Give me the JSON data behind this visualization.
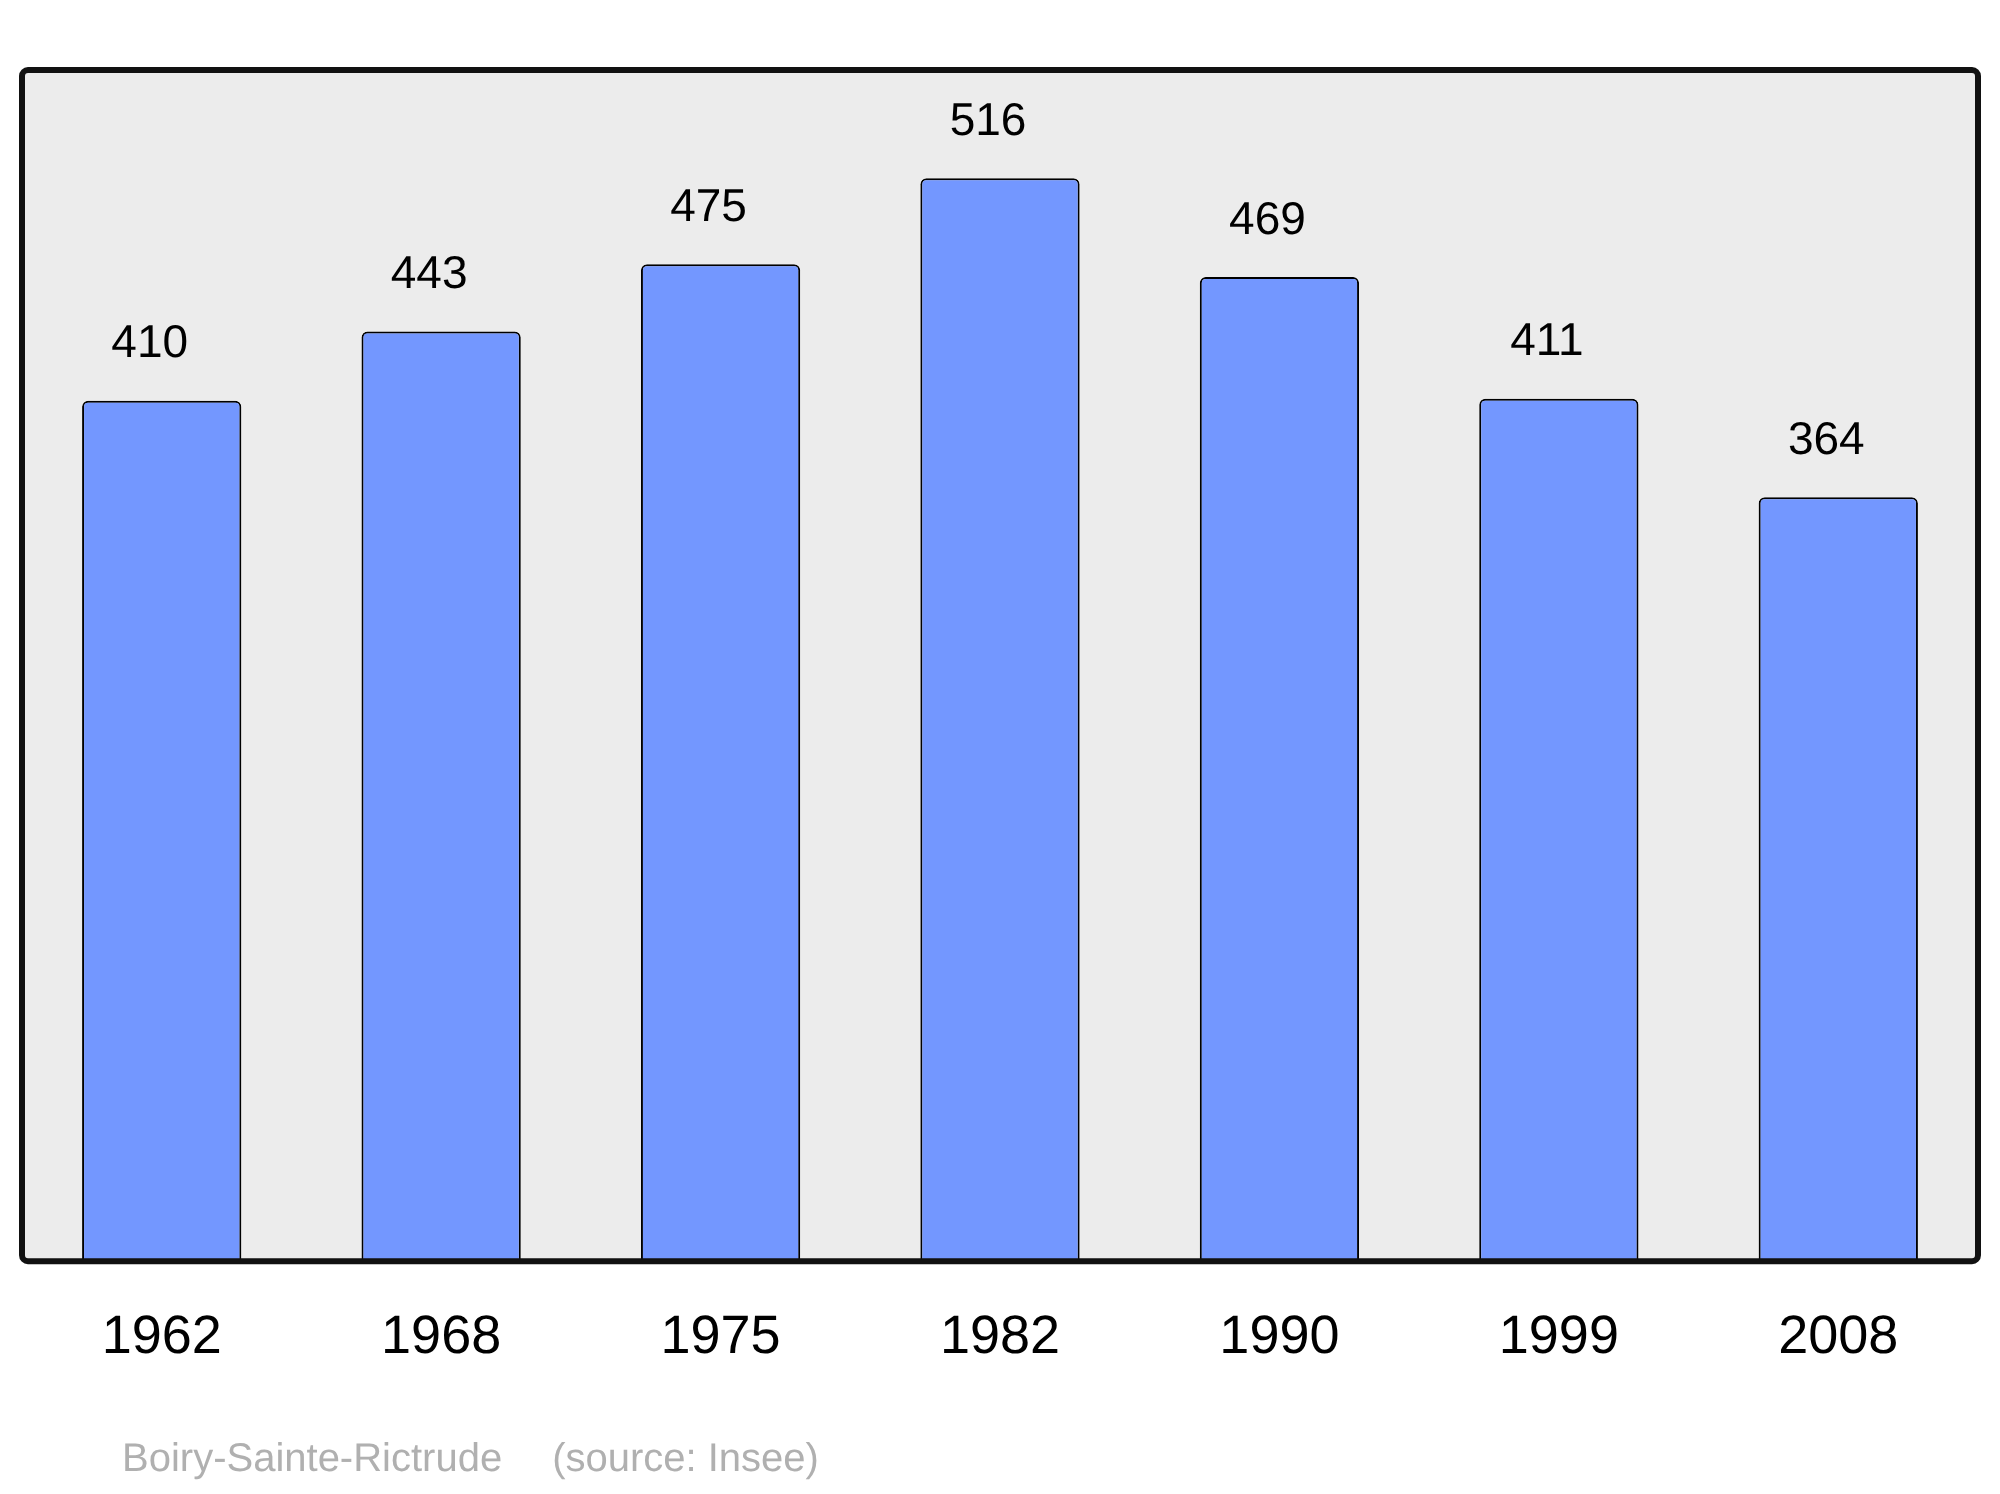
{
  "chart_data": {
    "type": "bar",
    "categories": [
      "1962",
      "1968",
      "1975",
      "1982",
      "1990",
      "1999",
      "2008"
    ],
    "values": [
      410,
      443,
      475,
      516,
      469,
      411,
      364
    ],
    "color": "#7397ff",
    "data_labels": true,
    "annotations": [
      "Boiry-Sainte-Rictrude",
      "(source: Insee)"
    ]
  }
}
